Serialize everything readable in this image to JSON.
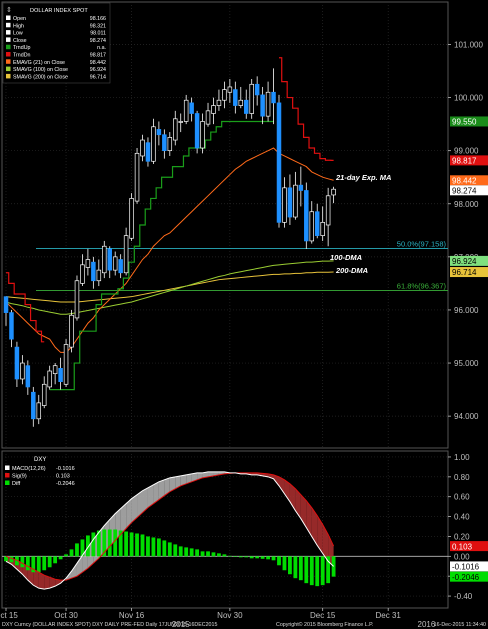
{
  "chart_data": [
    {
      "type": "candlestick",
      "instrument": "DOLLAR INDEX SPOT",
      "legend": [
        {
          "label": "Open",
          "value": "98.166",
          "color": "#ffffff"
        },
        {
          "label": "High",
          "value": "98.321",
          "color": "#ffffff"
        },
        {
          "label": "Low",
          "value": "98.011",
          "color": "#ffffff"
        },
        {
          "label": "Close",
          "value": "98.274",
          "color": "#ffffff"
        },
        {
          "label": "TrndUp",
          "value": "n.a.",
          "color": "#1a9e1a"
        },
        {
          "label": "TrndDn",
          "value": "98.817",
          "color": "#e01010"
        },
        {
          "label": "EMAVG (21) on Close",
          "value": "98.442",
          "color": "#ff6a1a"
        },
        {
          "label": "SMAVG (100) on Close",
          "value": "96.924",
          "color": "#9acd32"
        },
        {
          "label": "SMAVG (200) on Close",
          "value": "96.714",
          "color": "#e8c33a"
        }
      ],
      "y_ticks": [
        "101.000",
        "100.000",
        "99.000",
        "98.000",
        "97.000",
        "96.000",
        "95.000",
        "94.000"
      ],
      "ylim": [
        93.4,
        101.8
      ],
      "price_tags": [
        {
          "value": 99.55,
          "label": "99.550",
          "bg": "#1a8c1a",
          "fg": "#ffffff"
        },
        {
          "value": 98.817,
          "label": "98.817",
          "bg": "#e01010",
          "fg": "#ffffff"
        },
        {
          "value": 98.442,
          "label": "98.442",
          "bg": "#ff6a1a",
          "fg": "#ffffff"
        },
        {
          "value": 98.274,
          "label": "98.274",
          "bg": "#ffffff",
          "fg": "#000000"
        },
        {
          "value": 96.924,
          "label": "96.924",
          "bg": "#7fe07f",
          "fg": "#000000"
        },
        {
          "value": 96.714,
          "label": "96.714",
          "bg": "#e8c33a",
          "fg": "#000000"
        }
      ],
      "fib_levels": [
        {
          "label": "50.0%(97.158)",
          "value": 97.158,
          "color": "#2ab0c0"
        },
        {
          "label": "61.8%(96.367)",
          "value": 96.367,
          "color": "#3ab03a"
        }
      ],
      "annotations": [
        {
          "text": "21-day Exp. MA",
          "at_value": 98.5
        },
        {
          "text": "100-DMA",
          "at_value": 97.0
        },
        {
          "text": "200-DMA",
          "at_value": 96.75
        }
      ],
      "candles": [
        [
          96.25,
          95.95,
          95.7,
          96.2
        ],
        [
          95.95,
          95.45,
          95.3,
          96.0
        ],
        [
          95.3,
          94.7,
          94.55,
          95.4
        ],
        [
          94.7,
          95.0,
          94.6,
          95.15
        ],
        [
          94.95,
          94.55,
          94.4,
          95.05
        ],
        [
          94.45,
          93.95,
          93.8,
          94.55
        ],
        [
          93.95,
          94.25,
          93.85,
          94.4
        ],
        [
          94.2,
          94.6,
          94.15,
          94.75
        ],
        [
          94.55,
          94.85,
          94.5,
          94.95
        ],
        [
          94.8,
          94.95,
          94.6,
          95.0
        ],
        [
          94.9,
          94.65,
          94.5,
          95.1
        ],
        [
          94.6,
          95.35,
          94.55,
          95.45
        ],
        [
          95.3,
          95.9,
          95.2,
          96.0
        ],
        [
          95.85,
          96.55,
          95.8,
          96.65
        ],
        [
          96.5,
          96.85,
          96.45,
          97.05
        ],
        [
          96.8,
          96.95,
          96.65,
          97.15
        ],
        [
          96.9,
          96.55,
          96.4,
          97.0
        ],
        [
          96.55,
          96.75,
          96.45,
          96.95
        ],
        [
          96.7,
          97.2,
          96.6,
          97.3
        ],
        [
          97.15,
          96.75,
          96.6,
          97.2
        ],
        [
          96.75,
          97.0,
          96.65,
          97.1
        ],
        [
          96.95,
          96.7,
          96.6,
          97.05
        ],
        [
          96.7,
          97.4,
          96.65,
          97.55
        ],
        [
          97.35,
          98.1,
          97.3,
          98.2
        ],
        [
          98.05,
          98.95,
          98.0,
          99.05
        ],
        [
          98.9,
          99.2,
          98.8,
          99.3
        ],
        [
          99.15,
          98.8,
          98.7,
          99.25
        ],
        [
          98.8,
          99.45,
          98.75,
          99.6
        ],
        [
          99.4,
          99.3,
          99.1,
          99.55
        ],
        [
          99.3,
          99.0,
          98.85,
          99.4
        ],
        [
          99.0,
          99.25,
          98.9,
          99.35
        ],
        [
          99.2,
          99.6,
          99.1,
          99.75
        ],
        [
          99.55,
          99.55,
          99.35,
          99.7
        ],
        [
          99.55,
          99.95,
          99.5,
          100.05
        ],
        [
          99.9,
          99.7,
          99.55,
          100.0
        ],
        [
          99.7,
          99.05,
          98.95,
          99.75
        ],
        [
          99.05,
          99.55,
          98.95,
          99.7
        ],
        [
          99.5,
          99.75,
          99.45,
          99.9
        ],
        [
          99.7,
          99.85,
          99.5,
          100.0
        ],
        [
          99.85,
          99.95,
          99.75,
          100.15
        ],
        [
          99.95,
          100.15,
          99.8,
          100.3
        ],
        [
          100.1,
          100.2,
          99.9,
          100.35
        ],
        [
          100.15,
          99.85,
          99.7,
          100.3
        ],
        [
          99.85,
          99.95,
          99.8,
          100.2
        ],
        [
          99.95,
          99.7,
          99.6,
          100.15
        ],
        [
          99.7,
          100.25,
          99.6,
          100.35
        ],
        [
          100.25,
          100.05,
          99.85,
          100.4
        ],
        [
          100.05,
          99.65,
          99.5,
          100.2
        ],
        [
          99.65,
          100.1,
          99.55,
          100.3
        ],
        [
          100.1,
          99.9,
          99.5,
          100.55
        ],
        [
          99.9,
          97.65,
          97.55,
          100.05
        ],
        [
          97.65,
          98.3,
          97.55,
          98.5
        ],
        [
          98.3,
          97.75,
          97.6,
          98.55
        ],
        [
          97.75,
          98.35,
          97.7,
          98.6
        ],
        [
          98.35,
          98.25,
          97.95,
          98.7
        ],
        [
          98.25,
          97.3,
          97.15,
          98.4
        ],
        [
          97.3,
          97.85,
          97.25,
          98.05
        ],
        [
          97.85,
          97.4,
          97.35,
          98.0
        ],
        [
          97.4,
          97.65,
          97.3,
          97.95
        ],
        [
          97.6,
          98.15,
          97.2,
          98.3
        ],
        [
          98.166,
          98.274,
          98.011,
          98.321
        ]
      ],
      "ema21": [
        96.15,
        96.05,
        95.95,
        95.85,
        95.75,
        95.65,
        95.55,
        95.5,
        95.45,
        95.3,
        95.2,
        95.2,
        95.3,
        95.45,
        95.6,
        95.75,
        95.85,
        96.0,
        96.1,
        96.2,
        96.3,
        96.4,
        96.5,
        96.65,
        96.8,
        96.95,
        97.05,
        97.2,
        97.3,
        97.4,
        97.45,
        97.55,
        97.65,
        97.75,
        97.85,
        97.95,
        98.05,
        98.15,
        98.25,
        98.35,
        98.45,
        98.55,
        98.65,
        98.72,
        98.8,
        98.85,
        98.9,
        98.95,
        99.0,
        99.05,
        98.95,
        98.9,
        98.85,
        98.8,
        98.75,
        98.7,
        98.6,
        98.55,
        98.5,
        98.47,
        98.442
      ],
      "sma100": [
        96.15,
        96.12,
        96.1,
        96.08,
        96.05,
        96.03,
        96.0,
        95.98,
        95.96,
        95.94,
        95.92,
        95.92,
        95.93,
        95.95,
        95.97,
        95.99,
        96.01,
        96.03,
        96.05,
        96.07,
        96.09,
        96.11,
        96.13,
        96.15,
        96.18,
        96.21,
        96.24,
        96.27,
        96.3,
        96.33,
        96.36,
        96.39,
        96.42,
        96.45,
        96.48,
        96.51,
        96.54,
        96.57,
        96.6,
        96.63,
        96.65,
        96.68,
        96.7,
        96.72,
        96.74,
        96.76,
        96.78,
        96.8,
        96.82,
        96.84,
        96.85,
        96.86,
        96.87,
        96.88,
        96.89,
        96.9,
        96.9,
        96.91,
        96.92,
        96.92,
        96.924
      ],
      "sma200": [
        96.25,
        96.24,
        96.23,
        96.22,
        96.21,
        96.2,
        96.19,
        96.18,
        96.17,
        96.16,
        96.15,
        96.15,
        96.15,
        96.15,
        96.16,
        96.17,
        96.18,
        96.19,
        96.2,
        96.21,
        96.22,
        96.23,
        96.24,
        96.25,
        96.27,
        96.29,
        96.31,
        96.33,
        96.35,
        96.37,
        96.39,
        96.41,
        96.43,
        96.45,
        96.47,
        96.49,
        96.51,
        96.53,
        96.55,
        96.57,
        96.58,
        96.59,
        96.6,
        96.61,
        96.62,
        96.63,
        96.64,
        96.65,
        96.66,
        96.67,
        96.67,
        96.68,
        96.68,
        96.69,
        96.69,
        96.7,
        96.7,
        96.71,
        96.71,
        96.71,
        96.714
      ],
      "trend_up": [
        null,
        null,
        null,
        null,
        null,
        null,
        null,
        null,
        94.5,
        94.5,
        94.5,
        94.5,
        94.5,
        95.0,
        95.6,
        95.6,
        95.6,
        96.1,
        96.3,
        96.3,
        96.3,
        96.4,
        96.6,
        96.9,
        97.2,
        97.6,
        97.9,
        98.1,
        98.3,
        98.5,
        98.5,
        98.7,
        98.7,
        98.9,
        99.05,
        99.05,
        99.05,
        99.2,
        99.35,
        99.45,
        99.55,
        99.55,
        99.55,
        99.55,
        99.55,
        99.55,
        99.55,
        99.55,
        99.55,
        99.55,
        null,
        null,
        null,
        null,
        null,
        null,
        null,
        null,
        null,
        null,
        null
      ],
      "trend_down": [
        96.7,
        96.5,
        96.3,
        96.3,
        96.1,
        95.8,
        95.6,
        95.4,
        null,
        null,
        null,
        null,
        null,
        null,
        null,
        null,
        null,
        null,
        null,
        null,
        null,
        null,
        null,
        null,
        null,
        null,
        null,
        null,
        null,
        null,
        null,
        null,
        null,
        null,
        null,
        null,
        null,
        null,
        null,
        null,
        null,
        null,
        null,
        null,
        null,
        null,
        null,
        null,
        null,
        null,
        100.75,
        100.3,
        100.0,
        99.8,
        99.5,
        99.25,
        99.05,
        98.95,
        98.85,
        98.82,
        98.817
      ]
    },
    {
      "type": "macd",
      "title": "DXY",
      "legend": [
        {
          "label": "MACD(12,26)",
          "value": "-0.1016",
          "color": "#ffffff"
        },
        {
          "label": "Sig(9)",
          "value": "0.103",
          "color": "#e01010"
        },
        {
          "label": "Diff",
          "value": "-0.2046",
          "color": "#00dd00"
        }
      ],
      "y_ticks": [
        "1.00",
        "0.80",
        "0.60",
        "0.40",
        "0.20",
        "0.00",
        "-0.20",
        "-0.40"
      ],
      "ylim": [
        -0.52,
        1.06
      ],
      "price_tags": [
        {
          "value": 0.103,
          "label": "0.103",
          "bg": "#e01010",
          "fg": "#ffffff"
        },
        {
          "value": -0.1016,
          "label": "-0.1016",
          "bg": "#ffffff",
          "fg": "#000000"
        },
        {
          "value": -0.2046,
          "label": "-0.2046",
          "bg": "#00dd00",
          "fg": "#000000"
        }
      ],
      "macd": [
        -0.05,
        -0.08,
        -0.13,
        -0.18,
        -0.24,
        -0.29,
        -0.32,
        -0.33,
        -0.32,
        -0.3,
        -0.27,
        -0.22,
        -0.15,
        -0.07,
        0.01,
        0.09,
        0.17,
        0.24,
        0.31,
        0.37,
        0.43,
        0.48,
        0.53,
        0.58,
        0.62,
        0.66,
        0.69,
        0.72,
        0.75,
        0.77,
        0.79,
        0.8,
        0.81,
        0.82,
        0.83,
        0.84,
        0.84,
        0.85,
        0.85,
        0.85,
        0.85,
        0.84,
        0.84,
        0.83,
        0.83,
        0.82,
        0.82,
        0.81,
        0.8,
        0.78,
        0.71,
        0.63,
        0.55,
        0.46,
        0.38,
        0.29,
        0.2,
        0.11,
        0.03,
        -0.05,
        -0.1016
      ],
      "signal": [
        0.0,
        -0.02,
        -0.04,
        -0.07,
        -0.1,
        -0.13,
        -0.16,
        -0.19,
        -0.21,
        -0.23,
        -0.24,
        -0.24,
        -0.22,
        -0.2,
        -0.16,
        -0.12,
        -0.07,
        -0.02,
        0.04,
        0.1,
        0.16,
        0.22,
        0.28,
        0.34,
        0.39,
        0.44,
        0.49,
        0.53,
        0.57,
        0.61,
        0.65,
        0.68,
        0.71,
        0.73,
        0.75,
        0.77,
        0.79,
        0.8,
        0.81,
        0.82,
        0.83,
        0.835,
        0.84,
        0.84,
        0.84,
        0.84,
        0.84,
        0.835,
        0.83,
        0.82,
        0.8,
        0.77,
        0.73,
        0.68,
        0.62,
        0.56,
        0.49,
        0.41,
        0.32,
        0.22,
        0.103
      ],
      "hist": [
        -0.05,
        -0.06,
        -0.09,
        -0.11,
        -0.14,
        -0.16,
        -0.16,
        -0.14,
        -0.11,
        -0.07,
        -0.03,
        0.02,
        0.07,
        0.13,
        0.17,
        0.21,
        0.24,
        0.26,
        0.27,
        0.27,
        0.27,
        0.26,
        0.25,
        0.24,
        0.23,
        0.22,
        0.2,
        0.19,
        0.18,
        0.16,
        0.14,
        0.12,
        0.1,
        0.09,
        0.08,
        0.07,
        0.05,
        0.05,
        0.04,
        0.03,
        0.02,
        0.005,
        0.0,
        -0.01,
        -0.01,
        -0.02,
        -0.02,
        -0.025,
        -0.03,
        -0.04,
        -0.09,
        -0.14,
        -0.18,
        -0.22,
        -0.24,
        -0.27,
        -0.29,
        -0.3,
        -0.29,
        -0.27,
        -0.2046
      ]
    }
  ],
  "x_axis": {
    "labels": [
      {
        "text": "Oct 15",
        "index": 0
      },
      {
        "text": "Oct 30",
        "index": 11
      },
      {
        "text": "Nov 16",
        "index": 23
      },
      {
        "text": "Nov 30",
        "index": 41
      },
      {
        "text": "Dec 15",
        "index": 58
      },
      {
        "text": "Dec 31",
        "index": 70
      }
    ],
    "year_labels": [
      {
        "text": "2015",
        "index": 32
      },
      {
        "text": "2016",
        "index": 77
      }
    ]
  },
  "footer": {
    "left": "DXY Curncy (DOLLAR INDEX SPOT) DXY DAILY PRE-FED  Daily 17JUN2015-16DEC2015",
    "center": "Copyright© 2015 Bloomberg Finance L.P.",
    "right": "16-Dec-2015 11:34:40"
  },
  "colors": {
    "up_candle": "#000000",
    "down_candle": "#1e90ff",
    "grid": "#2a2a2a",
    "axis": "#bfbfbf",
    "macd_line": "#ffffff",
    "signal_line": "#e01010",
    "hist": "#00dd00"
  }
}
